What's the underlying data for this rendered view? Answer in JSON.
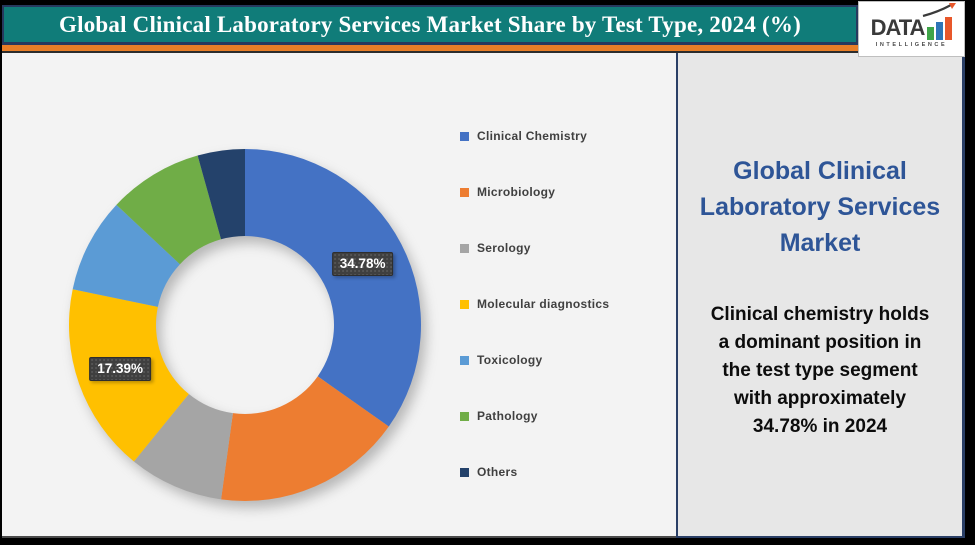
{
  "header": {
    "title": "Global Clinical Laboratory Services Market Share by Test Type, 2024 (%)",
    "bar_color": "#107C79",
    "accent_strip_color": "#E87E27"
  },
  "logo": {
    "text": "DATA",
    "subtext": "INTELLIGENCE",
    "bar_colors": [
      "#3FA548",
      "#2E75B6",
      "#E8572A"
    ]
  },
  "chart_data": {
    "type": "pie",
    "title": "Global Clinical Laboratory Services Market Share by Test Type, 2024 (%)",
    "donut": true,
    "hole_ratio": 0.505,
    "start_angle_deg": 0,
    "direction": "clockwise",
    "legend_position": "right",
    "categories": [
      "Clinical Chemistry",
      "Microbiology",
      "Serology",
      "Molecular diagnostics",
      "Toxicology",
      "Pathology",
      "Others"
    ],
    "values": [
      34.78,
      17.39,
      8.7,
      17.39,
      8.7,
      8.7,
      4.34
    ],
    "colors": [
      "#4472C4",
      "#ED7D31",
      "#A5A5A5",
      "#FFC000",
      "#5B9BD5",
      "#70AD47",
      "#24426B"
    ],
    "labels_shown": [
      {
        "index": 0,
        "text": "34.78%"
      },
      {
        "index": 3,
        "text": "17.39%"
      }
    ]
  },
  "side_panel": {
    "title": "Global Clinical\nLaboratory Services\nMarket",
    "description": "Clinical chemistry holds\na dominant position in\nthe test type segment\nwith approximately\n34.78% in 2024",
    "title_color": "#2E5597"
  }
}
